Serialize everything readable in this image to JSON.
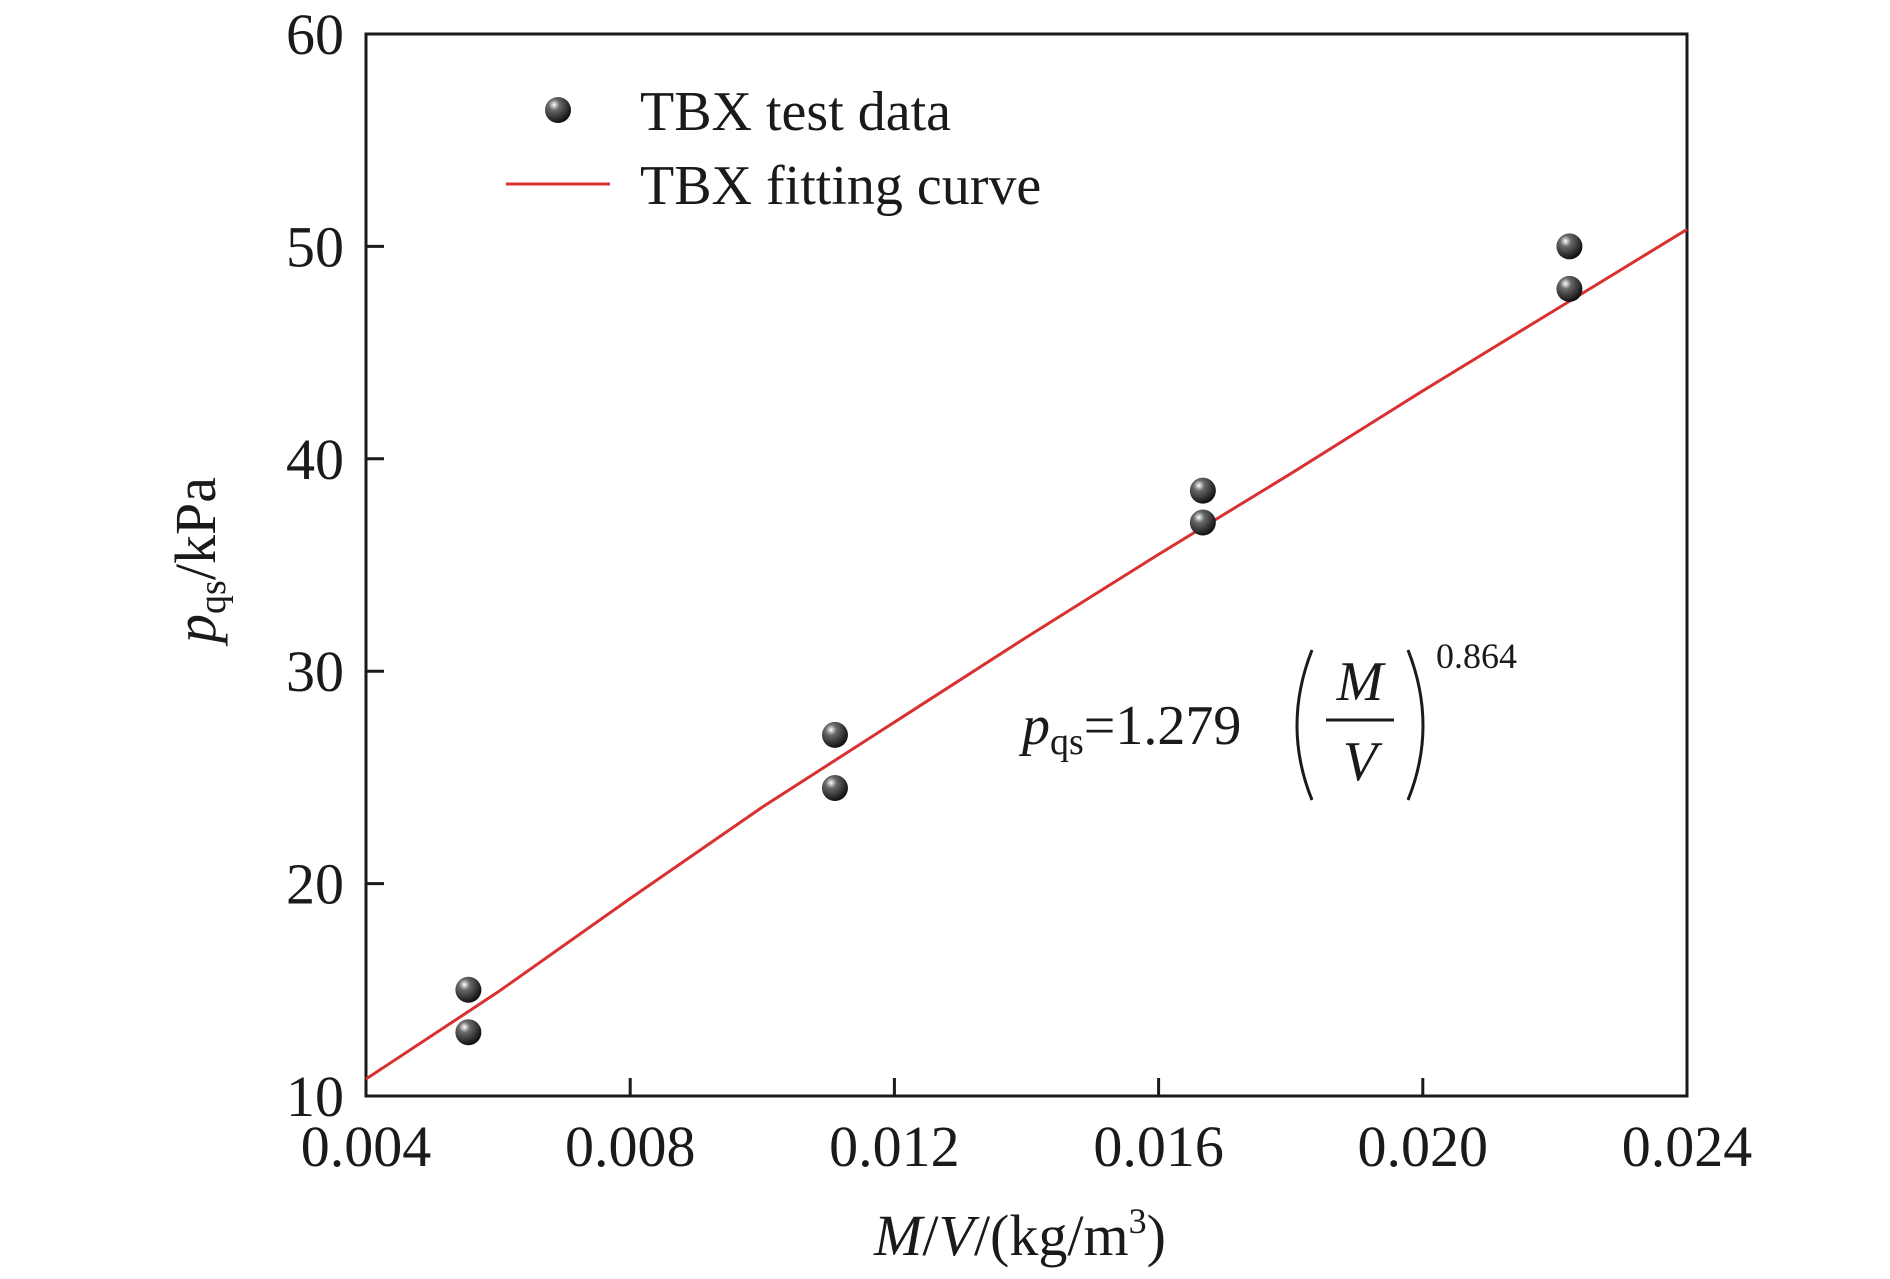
{
  "chart_data": {
    "type": "scatter",
    "title": "",
    "xlabel": {
      "var1": "M",
      "slash1": "/",
      "var2": "V",
      "unit_open": "/(kg/m",
      "unit_sup": "3",
      "unit_close": ")"
    },
    "ylabel": {
      "var": "p",
      "sub": "qs",
      "unit": "/kPa"
    },
    "xlim": [
      0.004,
      0.024
    ],
    "ylim": [
      10,
      60
    ],
    "xticks": [
      "0.004",
      "0.008",
      "0.012",
      "0.016",
      "0.020",
      "0.024"
    ],
    "yticks": [
      "10",
      "20",
      "30",
      "40",
      "50",
      "60"
    ],
    "legend_position": "top-left",
    "colors": {
      "fit": "#d93030",
      "points": "#111111",
      "axis": "#1a1a1a"
    },
    "series": [
      {
        "name": "TBX test data",
        "kind": "scatter",
        "x": [
          0.00555,
          0.00555,
          0.0111,
          0.0111,
          0.01667,
          0.01667,
          0.02222,
          0.02222
        ],
        "y": [
          15.0,
          13.0,
          27.0,
          24.5,
          38.5,
          37.0,
          50.0,
          48.0
        ]
      },
      {
        "name": "TBX fitting curve",
        "kind": "line",
        "x": [
          0.004,
          0.006,
          0.008,
          0.01,
          0.012,
          0.014,
          0.016,
          0.018,
          0.02,
          0.022,
          0.024
        ],
        "y": [
          10.8,
          14.9,
          19.3,
          23.6,
          27.6,
          31.6,
          35.5,
          39.3,
          43.2,
          47.0,
          50.8
        ]
      }
    ],
    "annotation": {
      "var": "p",
      "sub": "qs",
      "eq": "=1.279",
      "num": "M",
      "den": "V",
      "exponent": "0.864",
      "at": [
        0.0155,
        28
      ]
    }
  }
}
